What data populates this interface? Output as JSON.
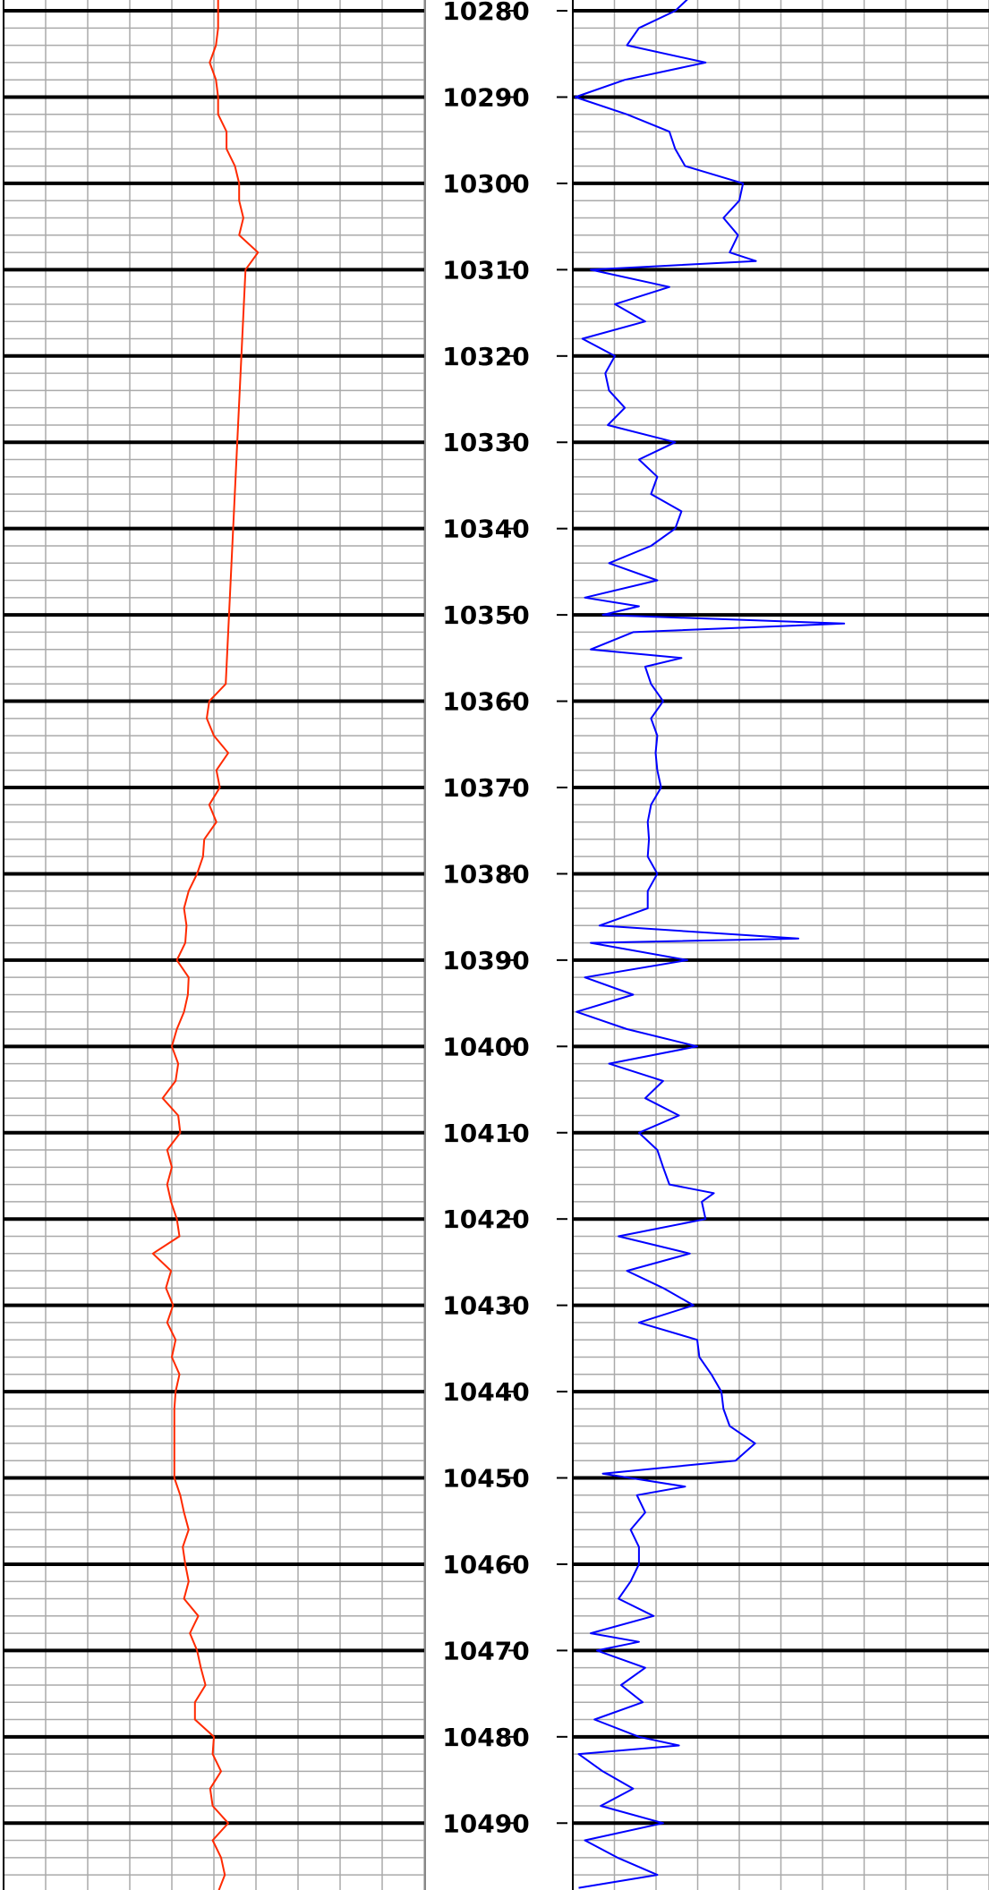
{
  "chart_data": {
    "type": "well-log",
    "ylim": [
      10278.75,
      10497.75
    ],
    "yticks": [
      10280,
      10290,
      10300,
      10310,
      10320,
      10330,
      10340,
      10350,
      10360,
      10370,
      10380,
      10390,
      10400,
      10410,
      10420,
      10430,
      10440,
      10450,
      10460,
      10470,
      10480,
      10490
    ],
    "xlim": [
      0,
      10
    ],
    "xticks": [
      0,
      1,
      2,
      3,
      4,
      5,
      6,
      7,
      8,
      9,
      10
    ],
    "grid": true,
    "tracks": [
      {
        "color": "#ff2a00",
        "depth": [
          10278,
          10280,
          10282,
          10284,
          10286,
          10288,
          10290,
          10292,
          10294,
          10296,
          10298,
          10300,
          10302,
          10304,
          10306,
          10308,
          10310,
          10358,
          10360,
          10362,
          10364,
          10366,
          10368,
          10370,
          10372,
          10374,
          10376,
          10378,
          10380,
          10382,
          10384,
          10386,
          10388,
          10390,
          10392,
          10394,
          10396,
          10398,
          10400,
          10402,
          10404,
          10406,
          10408,
          10410,
          10412,
          10414,
          10416,
          10418,
          10420,
          10422,
          10424,
          10426,
          10428,
          10430,
          10432,
          10434,
          10436,
          10438,
          10440,
          10442,
          10444,
          10446,
          10448,
          10450,
          10452,
          10454,
          10456,
          10458,
          10460,
          10462,
          10464,
          10466,
          10468,
          10470,
          10472,
          10474,
          10476,
          10478,
          10480,
          10482,
          10484,
          10486,
          10488,
          10490,
          10492,
          10494,
          10496,
          10498
        ],
        "values": [
          5.1,
          5.1,
          5.1,
          5.05,
          4.9,
          5.05,
          5.1,
          5.1,
          5.3,
          5.3,
          5.5,
          5.6,
          5.6,
          5.7,
          5.6,
          6.05,
          5.75,
          5.28,
          4.89,
          4.83,
          5.0,
          5.34,
          5.06,
          5.14,
          4.89,
          5.06,
          4.77,
          4.74,
          4.6,
          4.4,
          4.29,
          4.35,
          4.32,
          4.12,
          4.4,
          4.38,
          4.29,
          4.12,
          4.0,
          4.15,
          4.09,
          3.78,
          4.15,
          4.2,
          3.89,
          4.0,
          3.89,
          3.98,
          4.12,
          4.18,
          3.55,
          3.98,
          3.86,
          4.03,
          3.89,
          4.09,
          4.0,
          4.18,
          4.09,
          4.06,
          4.06,
          4.06,
          4.06,
          4.06,
          4.2,
          4.29,
          4.4,
          4.26,
          4.32,
          4.4,
          4.29,
          4.63,
          4.43,
          4.6,
          4.69,
          4.8,
          4.55,
          4.55,
          5.0,
          4.97,
          5.17,
          4.91,
          4.97,
          5.34,
          4.97,
          5.17,
          5.26,
          5.1
        ]
      },
      {
        "color": "#0000ff",
        "depth": [
          10278,
          10280,
          10282,
          10284,
          10286,
          10288,
          10290,
          10292,
          10294,
          10296,
          10298,
          10300,
          10302,
          10304,
          10306,
          10308,
          10309,
          10310,
          10312,
          10314,
          10316,
          10318,
          10320,
          10322,
          10324,
          10326,
          10328,
          10330,
          10332,
          10334,
          10336,
          10338,
          10340,
          10342,
          10344,
          10346,
          10348,
          10349,
          10350,
          10351,
          10352,
          10354,
          10355,
          10356,
          10358,
          10360,
          10362,
          10364,
          10366,
          10368,
          10370,
          10372,
          10374,
          10376,
          10378,
          10380,
          10382,
          10384,
          10386,
          10387.5,
          10388,
          10390,
          10392,
          10394,
          10396,
          10398,
          10400,
          10402,
          10404,
          10406,
          10408,
          10410,
          10412,
          10414,
          10416,
          10417,
          10418,
          10420,
          10422,
          10424,
          10426,
          10428,
          10430,
          10432,
          10434,
          10436,
          10438,
          10440,
          10442,
          10444,
          10446,
          10448,
          10449.5,
          10451,
          10452,
          10454,
          10456,
          10458,
          10460,
          10462,
          10464,
          10466,
          10468,
          10469,
          10470,
          10472,
          10474,
          10476,
          10478,
          10480,
          10481,
          10482,
          10484,
          10486,
          10488,
          10490,
          10492,
          10494,
          10496,
          10497.5
        ],
        "values": [
          2.9,
          2.46,
          1.59,
          1.3,
          3.19,
          1.25,
          0.06,
          1.3,
          2.32,
          2.46,
          2.7,
          4.09,
          4.0,
          3.62,
          3.97,
          3.77,
          4.4,
          0.43,
          2.32,
          1.01,
          1.74,
          0.23,
          1.01,
          0.78,
          0.87,
          1.25,
          0.84,
          2.46,
          1.59,
          2.03,
          1.88,
          2.61,
          2.46,
          1.88,
          0.87,
          2.03,
          0.29,
          1.59,
          0.72,
          6.52,
          1.45,
          0.43,
          2.61,
          1.74,
          1.88,
          2.17,
          1.88,
          2.03,
          1.99,
          2.03,
          2.12,
          1.88,
          1.8,
          1.83,
          1.8,
          2.03,
          1.8,
          1.8,
          0.64,
          5.42,
          0.43,
          2.75,
          0.29,
          1.45,
          0.09,
          1.3,
          2.99,
          0.87,
          2.17,
          1.74,
          2.55,
          1.59,
          2.03,
          2.17,
          2.32,
          3.39,
          3.1,
          3.19,
          1.1,
          2.81,
          1.3,
          2.17,
          2.9,
          1.59,
          2.99,
          3.04,
          3.33,
          3.57,
          3.62,
          3.77,
          4.38,
          3.91,
          0.72,
          2.7,
          1.54,
          1.74,
          1.39,
          1.59,
          1.59,
          1.39,
          1.1,
          1.94,
          0.43,
          1.59,
          0.58,
          1.74,
          1.16,
          1.68,
          0.52,
          1.59,
          2.55,
          0.14,
          0.72,
          1.45,
          0.67,
          2.17,
          0.29,
          1.07,
          2.03,
          0.14
        ]
      }
    ]
  }
}
